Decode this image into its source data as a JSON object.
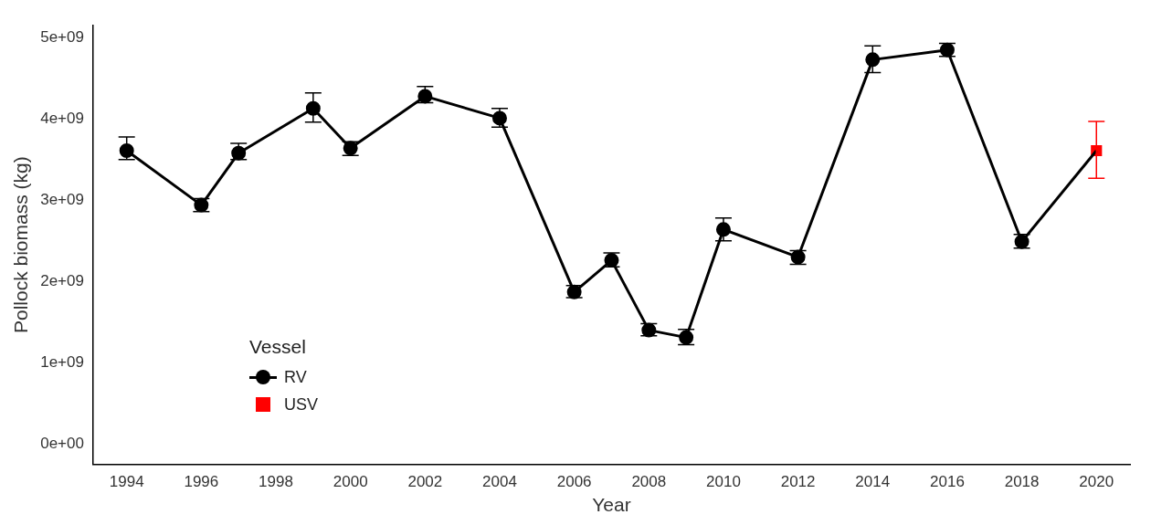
{
  "chart_data": {
    "type": "line",
    "xlabel": "Year",
    "ylabel": "Pollock biomass (kg)",
    "legend_title": "Vessel",
    "legend": "bottom left",
    "grid": false,
    "xlim": [
      1993.1,
      2020.9
    ],
    "xticks": [
      1994,
      1996,
      1998,
      2000,
      2002,
      2004,
      2006,
      2008,
      2010,
      2012,
      2014,
      2016,
      2018,
      2020
    ],
    "ylim": [
      -250000000,
      5150000000
    ],
    "yticks": [
      {
        "value": 0,
        "label": "0e+00"
      },
      {
        "value": 1000000000,
        "label": "1e+09"
      },
      {
        "value": 2000000000,
        "label": "2e+09"
      },
      {
        "value": 3000000000,
        "label": "3e+09"
      },
      {
        "value": 4000000000,
        "label": "4e+09"
      },
      {
        "value": 5000000000,
        "label": "5e+09"
      }
    ],
    "series": [
      {
        "type": "line",
        "color": "#000000",
        "line_style": "solid",
        "x": [
          2018,
          2020
        ],
        "values": [
          2490000000,
          3610000000
        ]
      },
      {
        "name": "RV",
        "color": "#000000",
        "marker": "circle",
        "line_style": "solid",
        "x": [
          1994,
          1996,
          1997,
          1999,
          2000,
          2002,
          2004,
          2006,
          2007,
          2008,
          2009,
          2010,
          2012,
          2014,
          2016,
          2018
        ],
        "values": [
          3610000000,
          2940000000,
          3580000000,
          4130000000,
          3640000000,
          4280000000,
          4010000000,
          1870000000,
          2260000000,
          1400000000,
          1310000000,
          2640000000,
          2300000000,
          4730000000,
          4850000000,
          2490000000
        ],
        "errors": [
          [
            3500000000,
            3780000000
          ],
          [
            2860000000,
            3020000000
          ],
          [
            3500000000,
            3700000000
          ],
          [
            3960000000,
            4320000000
          ],
          [
            3550000000,
            3720000000
          ],
          [
            4200000000,
            4400000000
          ],
          [
            3900000000,
            4130000000
          ],
          [
            1800000000,
            1950000000
          ],
          [
            2180000000,
            2350000000
          ],
          [
            1330000000,
            1480000000
          ],
          [
            1220000000,
            1410000000
          ],
          [
            2500000000,
            2780000000
          ],
          [
            2210000000,
            2380000000
          ],
          [
            4570000000,
            4900000000
          ],
          [
            4770000000,
            4930000000
          ],
          [
            2410000000,
            2580000000
          ]
        ]
      },
      {
        "name": "USV",
        "type": "scatter",
        "color": "#ff0000",
        "marker": "square",
        "x": [
          2020
        ],
        "values": [
          3610000000
        ],
        "errors": [
          [
            3270000000,
            3970000000
          ]
        ]
      }
    ]
  }
}
